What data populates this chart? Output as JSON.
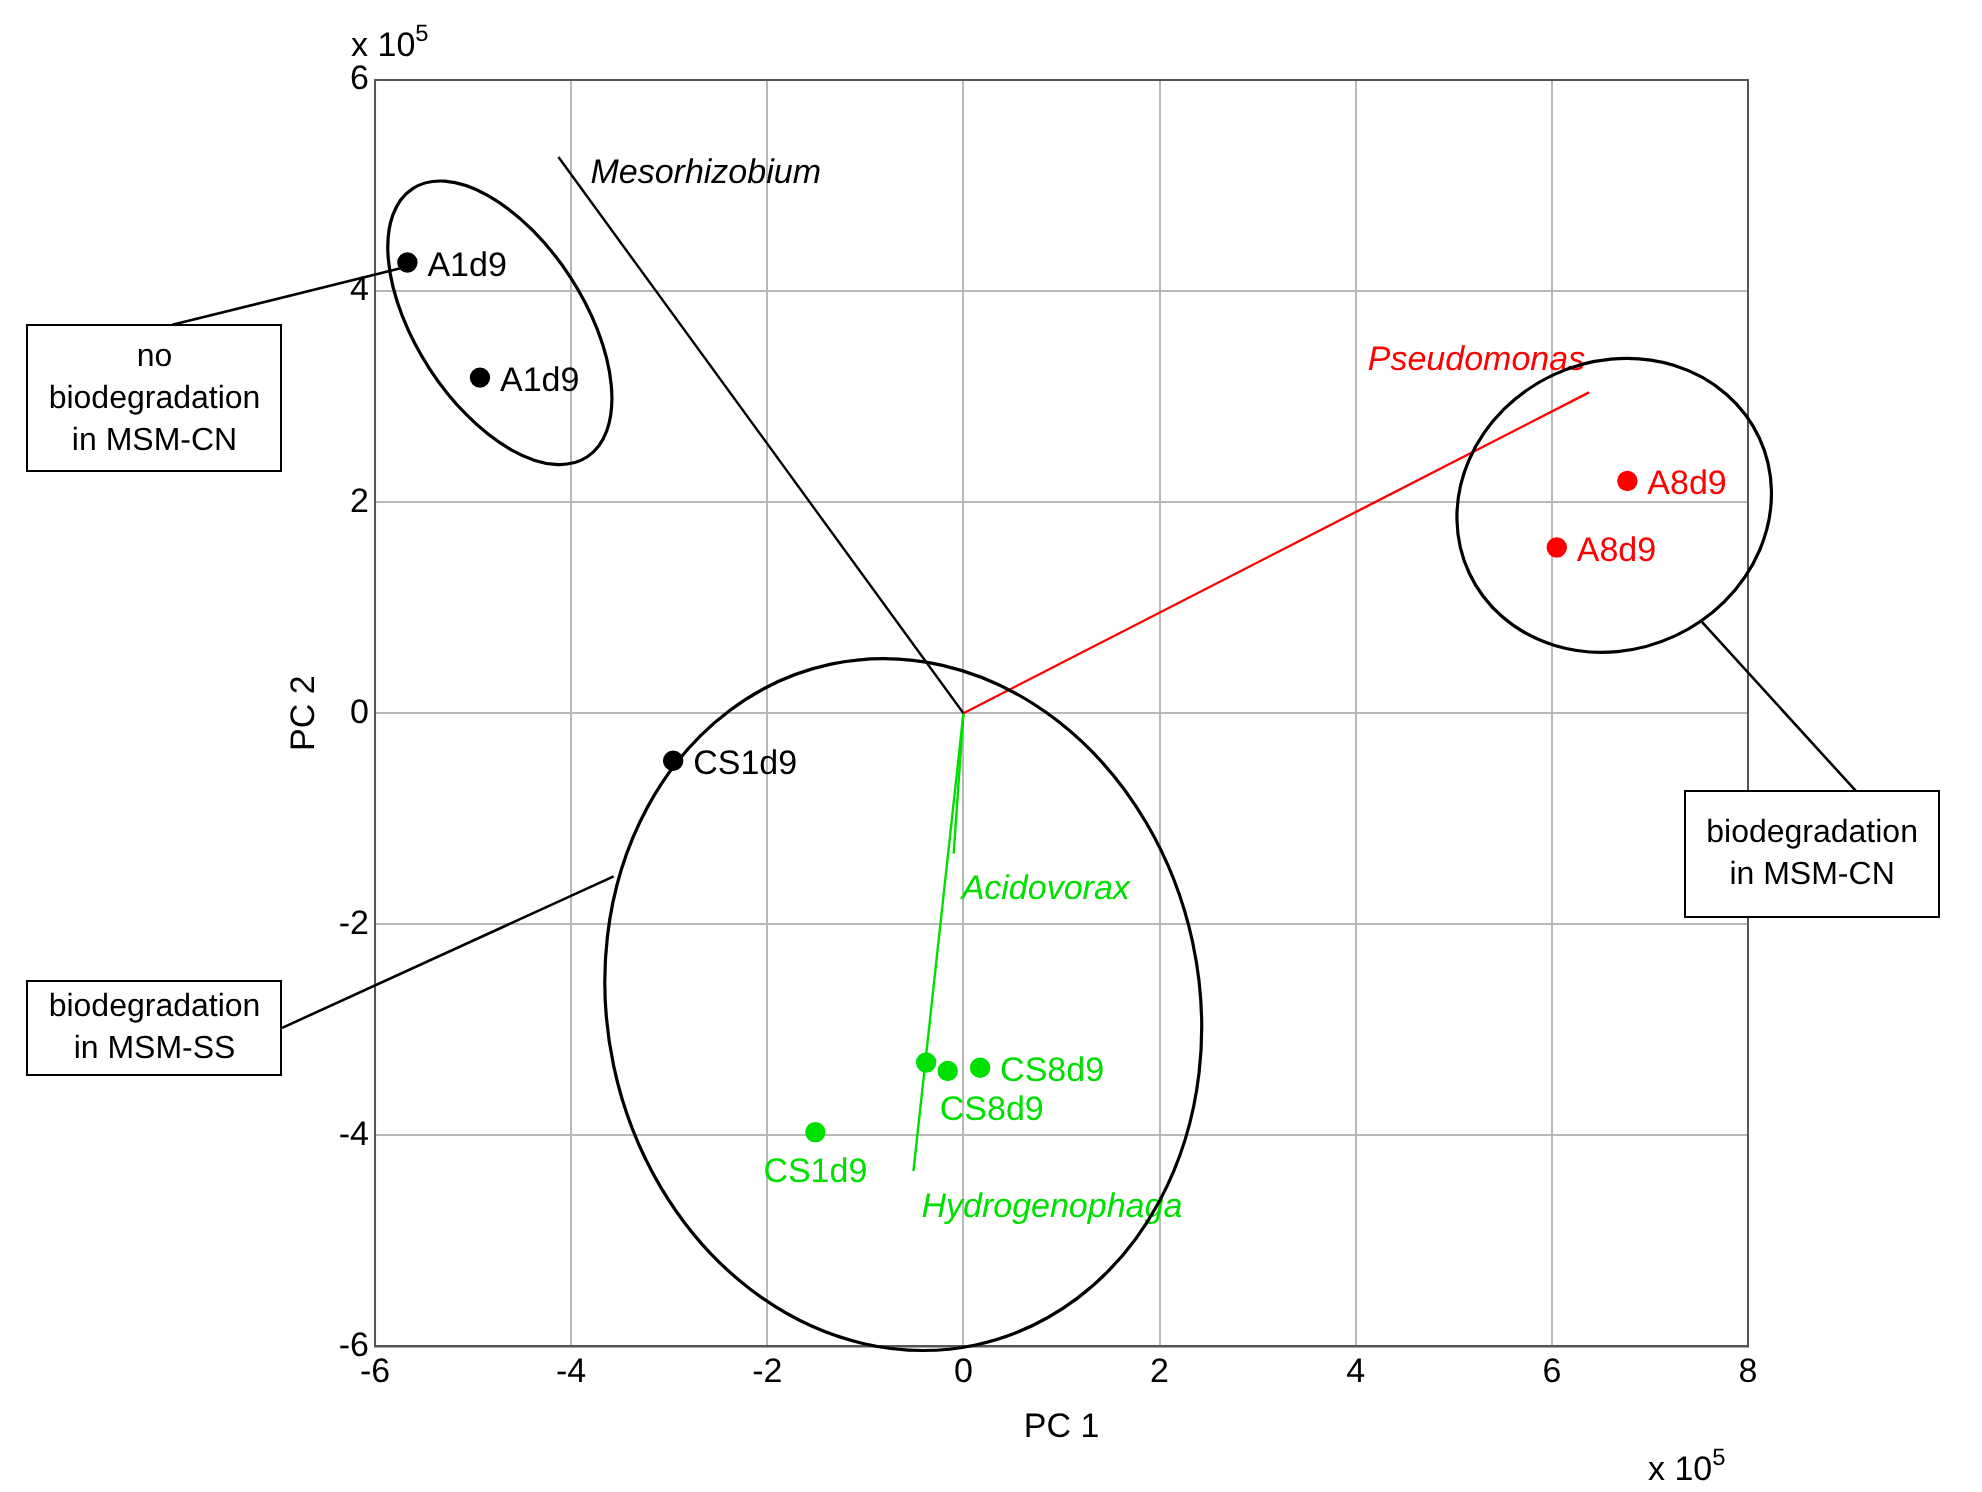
{
  "chart_data": {
    "type": "scatter",
    "xlabel": "PC 1",
    "ylabel": "PC 2",
    "xlim": [
      -6,
      8
    ],
    "xticks": [
      -6,
      -4,
      -2,
      0,
      2,
      4,
      6,
      8
    ],
    "ylim": [
      -6,
      6
    ],
    "yticks": [
      -6,
      -4,
      -2,
      0,
      2,
      4,
      6
    ],
    "grid": true,
    "marker": "circle",
    "annotations": [
      "x 10$^{5}$",
      "x 10$^{5}$",
      {
        "text": "no biodegradation in MSM-CN",
        "x": -5.72,
        "y": 4.22
      },
      "biodegradation in MSM-SS",
      "biodegradation in MSM-CN"
    ],
    "series": [
      {
        "type": "line",
        "marker": "none",
        "name": "Mesorhizobium",
        "color": "#000000",
        "x": [
          0,
          -4.13
        ],
        "values": [
          0,
          5.27
        ]
      },
      {
        "type": "line",
        "marker": "none",
        "name": "Pseudomonas",
        "color": "#ff0000",
        "x": [
          0,
          6.38
        ],
        "values": [
          0,
          3.04
        ]
      },
      {
        "type": "line",
        "marker": "none",
        "name": "Acidovorax",
        "color": "#00e000",
        "x": [
          0,
          -0.1
        ],
        "values": [
          0,
          -1.33
        ]
      },
      {
        "type": "line",
        "marker": "none",
        "name": "Hydrogenophaga",
        "color": "#00e000",
        "x": [
          0,
          -0.51
        ],
        "values": [
          0,
          -4.34
        ]
      },
      {
        "name": "A1d9",
        "color": "#000000",
        "x": [
          -5.67
        ],
        "values": [
          4.27
        ]
      },
      {
        "name": "A1d9",
        "color": "#000000",
        "x": [
          -4.93
        ],
        "values": [
          3.18
        ]
      },
      {
        "name": "CS1d9",
        "color": "#000000",
        "x": [
          -2.96
        ],
        "values": [
          -0.45
        ]
      },
      {
        "name": "CS1d9",
        "color": "#00e000",
        "x": [
          -1.51
        ],
        "values": [
          -3.97
        ]
      },
      {
        "name": "CS8d9",
        "color": "#00e000",
        "x": [
          0.17
        ],
        "values": [
          -3.36
        ]
      },
      {
        "name": "CS8d9",
        "color": "#00e000",
        "x": [
          -0.38,
          -0.16
        ],
        "values": [
          -3.31,
          -3.39
        ]
      },
      {
        "name": "A8d9",
        "color": "#ff0000",
        "x": [
          6.77
        ],
        "values": [
          2.2
        ]
      },
      {
        "name": "A8d9",
        "color": "#ff0000",
        "x": [
          6.05
        ],
        "values": [
          1.57
        ]
      }
    ]
  }
}
